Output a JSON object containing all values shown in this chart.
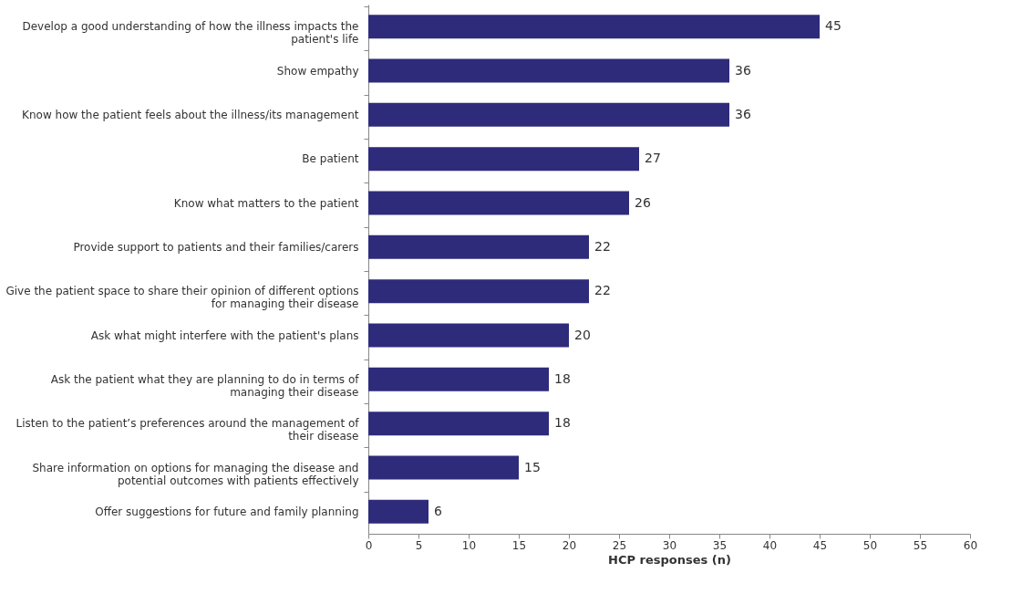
{
  "chart_data": {
    "type": "bar",
    "orientation": "horizontal",
    "xlabel": "HCP responses (n)",
    "categories": [
      "Develop a good understanding of how the illness impacts the\npatient's life",
      "Show empathy",
      "Know how the patient feels about the illness/its management",
      "Be patient",
      "Know what matters to the patient",
      "Provide support to patients and their families/carers",
      "Give the patient space to share their opinion of different options\nfor managing their disease",
      "Ask what might interfere with the patient's plans",
      "Ask the patient what they are planning to do in terms of\nmanaging their disease",
      "Listen to the patient’s preferences around the management of\ntheir disease",
      "Share information on options for managing the disease and\npotential outcomes with patients effectively",
      "Offer suggestions for future and family planning"
    ],
    "values": [
      45,
      36,
      36,
      27,
      26,
      22,
      22,
      20,
      18,
      18,
      15,
      6
    ],
    "color": "#2e2b7b",
    "xlim": [
      0,
      60
    ],
    "xticks": [
      0,
      5,
      10,
      15,
      20,
      25,
      30,
      35,
      40,
      45,
      50,
      55,
      60
    ],
    "data_labels": true,
    "grid": false
  }
}
